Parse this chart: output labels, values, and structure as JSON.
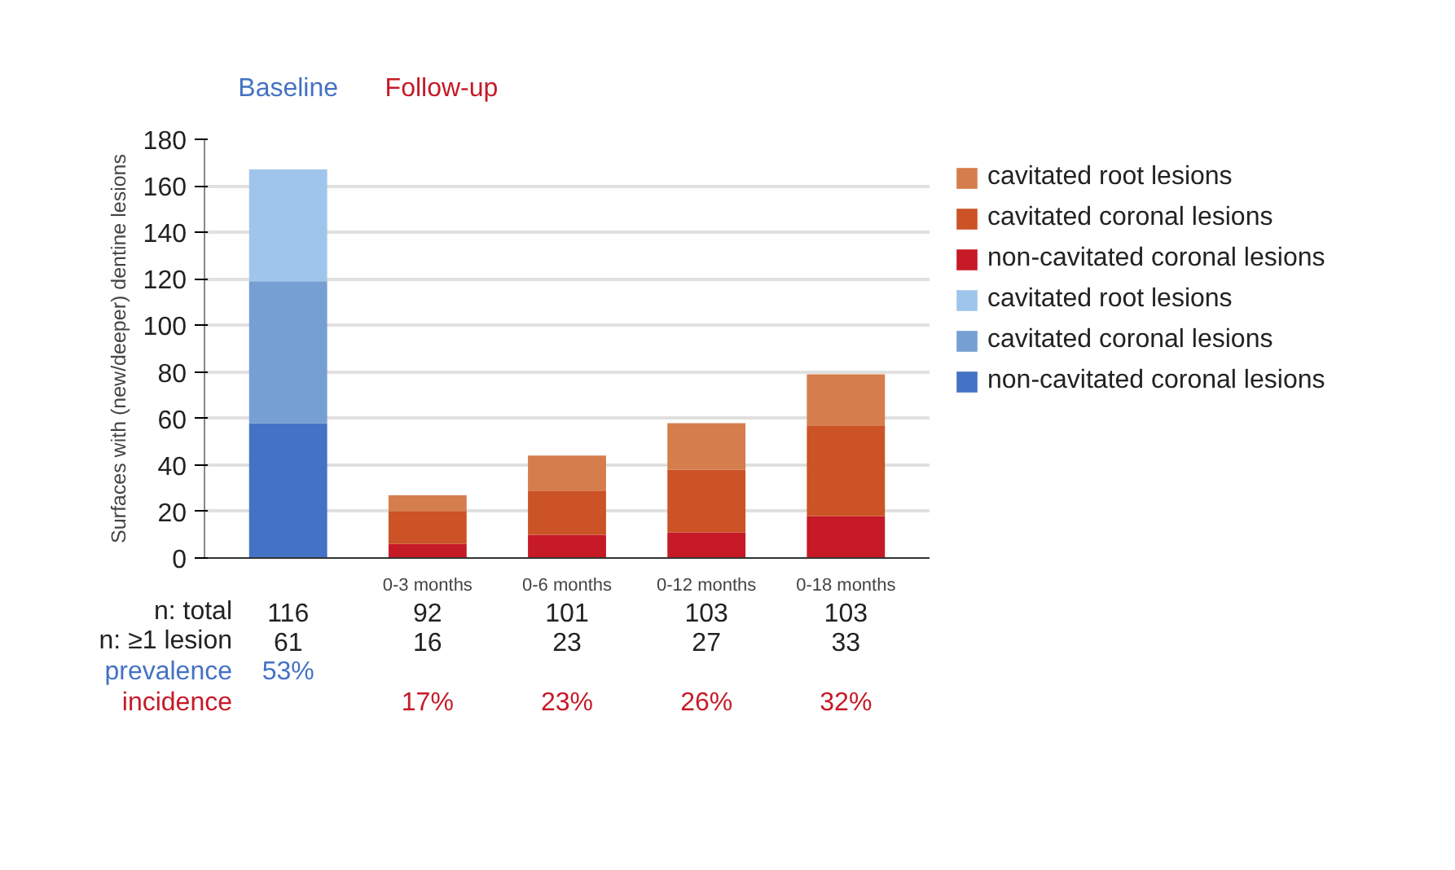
{
  "chart_data": {
    "type": "bar",
    "stacked": true,
    "ylabel": "Surfaces with (new/deeper) dentine lesions",
    "categories": [
      null,
      "0-3 months",
      "0-6 months",
      "0-12 months",
      "0-18 months"
    ],
    "series": [
      {
        "name": "non-cavitated coronal lesions",
        "color": "#4472c4",
        "values": [
          58,
          null,
          null,
          null,
          null
        ]
      },
      {
        "name": "cavitated coronal lesions",
        "color": "#769fd3",
        "values": [
          61,
          null,
          null,
          null,
          null
        ]
      },
      {
        "name": "cavitated root lesions",
        "color": "#a0c5ea",
        "values": [
          48,
          null,
          null,
          null,
          null
        ]
      },
      {
        "name": "non-cavitated coronal lesions",
        "color": "#c61a27",
        "values": [
          null,
          6,
          10,
          11,
          18
        ]
      },
      {
        "name": "cavitated coronal lesions",
        "color": "#cb5325",
        "values": [
          null,
          14,
          19,
          27,
          39
        ]
      },
      {
        "name": "cavitated root lesions",
        "color": "#d57d4c",
        "values": [
          null,
          7,
          15,
          20,
          22
        ]
      }
    ],
    "ylim": [
      0,
      180
    ],
    "yticks": [
      0,
      20,
      40,
      60,
      80,
      100,
      120,
      140,
      160,
      180
    ],
    "grid": "y",
    "legend": "right",
    "annotations": [
      "Baseline",
      "Follow-up",
      "n: total",
      "116",
      "92",
      "101",
      "103",
      "103",
      "n: ≥1 lesion",
      "61",
      "16",
      "23",
      "27",
      "33",
      "prevalence",
      "53%",
      "incidence",
      "17%",
      "23%",
      "26%",
      "32%"
    ]
  }
}
